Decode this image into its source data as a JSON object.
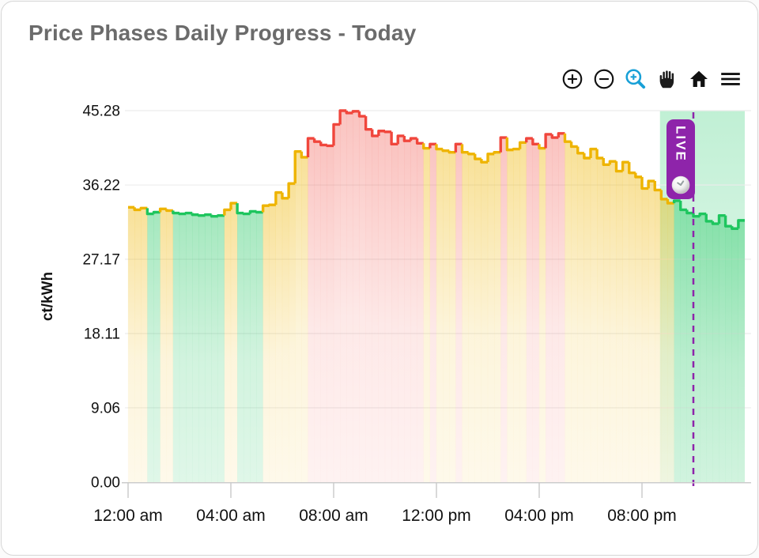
{
  "card": {
    "title": "Price Phases Daily Progress - Today"
  },
  "toolbar": {
    "items": [
      {
        "name": "zoom-in"
      },
      {
        "name": "zoom-out"
      },
      {
        "name": "box-zoom",
        "active": true
      },
      {
        "name": "pan"
      },
      {
        "name": "reset-axes"
      },
      {
        "name": "menu"
      }
    ]
  },
  "colors": {
    "green": "#1ec55e",
    "yellow": "#eeb400",
    "red": "#f0463c",
    "purple": "#8e24aa",
    "band_green": "#2ecc71",
    "title_text": "#6b6b6b",
    "axis_text": "#111111",
    "grid": "#ececec",
    "axis_line": "#cccccc",
    "toolbar_icon": "#111111",
    "toolbar_active": "#18a0d7"
  },
  "chart_data": {
    "type": "area",
    "subtype": "step-phase-area",
    "title": "Price Phases Daily Progress - Today",
    "xlabel": "",
    "ylabel": "ct/kWh",
    "ylim": [
      0,
      45.28
    ],
    "x_range_hours": [
      0,
      24
    ],
    "grid": "horizontal-only",
    "legend": "none",
    "interval_minutes": 15,
    "y_ticks": [
      {
        "label": "0.00",
        "value": 0
      },
      {
        "label": "9.06",
        "value": 9.06
      },
      {
        "label": "18.11",
        "value": 18.11
      },
      {
        "label": "27.17",
        "value": 27.17
      },
      {
        "label": "36.22",
        "value": 36.22
      },
      {
        "label": "45.28",
        "value": 45.28
      }
    ],
    "x_ticks": [
      {
        "label": "12:00 am",
        "hour": 0
      },
      {
        "label": "04:00 am",
        "hour": 4
      },
      {
        "label": "08:00 am",
        "hour": 8
      },
      {
        "label": "12:00 pm",
        "hour": 12
      },
      {
        "label": "04:00 pm",
        "hour": 16
      },
      {
        "label": "08:00 pm",
        "hour": 20
      }
    ],
    "phase_colors": {
      "g": "green",
      "y": "yellow",
      "r": "red"
    },
    "points": [
      [
        0,
        33.5,
        "y"
      ],
      [
        0.25,
        33.2,
        "y"
      ],
      [
        0.5,
        33.4,
        "y"
      ],
      [
        0.75,
        32.7,
        "g"
      ],
      [
        1,
        32.9,
        "g"
      ],
      [
        1.25,
        33.3,
        "y"
      ],
      [
        1.5,
        33.1,
        "y"
      ],
      [
        1.75,
        32.8,
        "g"
      ],
      [
        2,
        32.7,
        "g"
      ],
      [
        2.25,
        32.8,
        "g"
      ],
      [
        2.5,
        32.6,
        "g"
      ],
      [
        2.75,
        32.5,
        "g"
      ],
      [
        3,
        32.6,
        "g"
      ],
      [
        3.25,
        32.4,
        "g"
      ],
      [
        3.5,
        32.5,
        "g"
      ],
      [
        3.75,
        33.2,
        "y"
      ],
      [
        4,
        34,
        "y"
      ],
      [
        4.25,
        32.8,
        "g"
      ],
      [
        4.5,
        32.7,
        "g"
      ],
      [
        4.75,
        33,
        "g"
      ],
      [
        5,
        32.9,
        "g"
      ],
      [
        5.25,
        33.7,
        "y"
      ],
      [
        5.5,
        33.8,
        "y"
      ],
      [
        5.75,
        35.3,
        "y"
      ],
      [
        6,
        34.6,
        "y"
      ],
      [
        6.25,
        36.4,
        "y"
      ],
      [
        6.5,
        40.3,
        "y"
      ],
      [
        6.75,
        39.6,
        "y"
      ],
      [
        7,
        41.9,
        "r"
      ],
      [
        7.25,
        41.5,
        "r"
      ],
      [
        7.5,
        41.1,
        "r"
      ],
      [
        7.75,
        41,
        "r"
      ],
      [
        8,
        43.6,
        "r"
      ],
      [
        8.25,
        45.28,
        "r"
      ],
      [
        8.5,
        45,
        "r"
      ],
      [
        8.75,
        45.2,
        "r"
      ],
      [
        9,
        44.6,
        "r"
      ],
      [
        9.25,
        43,
        "r"
      ],
      [
        9.5,
        42.2,
        "r"
      ],
      [
        9.75,
        42.8,
        "r"
      ],
      [
        10,
        42.7,
        "r"
      ],
      [
        10.25,
        41.2,
        "r"
      ],
      [
        10.5,
        42.2,
        "r"
      ],
      [
        10.75,
        41.6,
        "r"
      ],
      [
        11,
        41.9,
        "r"
      ],
      [
        11.25,
        41.3,
        "r"
      ],
      [
        11.5,
        40.7,
        "y"
      ],
      [
        11.75,
        41.2,
        "r"
      ],
      [
        12,
        40.6,
        "y"
      ],
      [
        12.25,
        40.4,
        "y"
      ],
      [
        12.5,
        40.2,
        "y"
      ],
      [
        12.75,
        41.2,
        "r"
      ],
      [
        13,
        40.2,
        "y"
      ],
      [
        13.25,
        40,
        "y"
      ],
      [
        13.5,
        39.4,
        "y"
      ],
      [
        13.75,
        39,
        "y"
      ],
      [
        14,
        40,
        "y"
      ],
      [
        14.25,
        40.2,
        "y"
      ],
      [
        14.5,
        42,
        "r"
      ],
      [
        14.75,
        40.5,
        "y"
      ],
      [
        15,
        40.6,
        "y"
      ],
      [
        15.25,
        41.4,
        "y"
      ],
      [
        15.5,
        41.9,
        "r"
      ],
      [
        15.75,
        41.2,
        "r"
      ],
      [
        16,
        40.7,
        "y"
      ],
      [
        16.25,
        42.4,
        "r"
      ],
      [
        16.5,
        42,
        "r"
      ],
      [
        16.75,
        42.5,
        "r"
      ],
      [
        17,
        41.5,
        "y"
      ],
      [
        17.25,
        40.9,
        "y"
      ],
      [
        17.5,
        40.1,
        "y"
      ],
      [
        17.75,
        39.5,
        "y"
      ],
      [
        18,
        40.6,
        "y"
      ],
      [
        18.25,
        39.5,
        "y"
      ],
      [
        18.5,
        38.7,
        "y"
      ],
      [
        18.75,
        39.1,
        "y"
      ],
      [
        19,
        37.9,
        "y"
      ],
      [
        19.25,
        39,
        "y"
      ],
      [
        19.5,
        37.7,
        "y"
      ],
      [
        19.75,
        37.2,
        "y"
      ],
      [
        20,
        35.8,
        "y"
      ],
      [
        20.25,
        36.7,
        "y"
      ],
      [
        20.5,
        35.6,
        "y"
      ],
      [
        20.75,
        34.5,
        "y"
      ],
      [
        21,
        34,
        "y"
      ],
      [
        21.25,
        34.3,
        "g"
      ],
      [
        21.5,
        33.2,
        "g"
      ],
      [
        21.75,
        32.8,
        "g"
      ],
      [
        22,
        32.4,
        "g"
      ],
      [
        22.25,
        32.7,
        "g"
      ],
      [
        22.5,
        31.8,
        "g"
      ],
      [
        22.75,
        31.5,
        "g"
      ],
      [
        23,
        32.5,
        "g"
      ],
      [
        23.25,
        31.2,
        "g"
      ],
      [
        23.5,
        30.9,
        "g"
      ],
      [
        23.75,
        31.9,
        "g"
      ]
    ],
    "live": {
      "label": "LIVE",
      "current_hour": 22.0,
      "highlight_start_hour": 20.7,
      "highlight_end_hour": 24
    }
  }
}
